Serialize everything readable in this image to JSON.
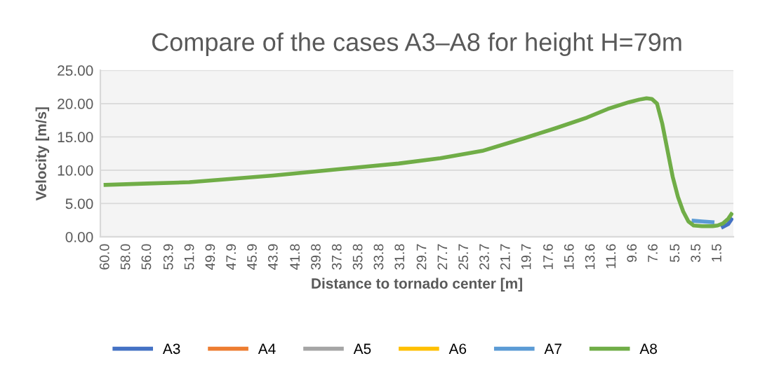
{
  "chart_data": {
    "type": "line",
    "title": "Compare of the cases A3–A8 for height H=79m",
    "xlabel": "Distance to tornado center [m]",
    "ylabel": "Velocity [m/s]",
    "x": [
      60,
      56,
      52,
      48,
      44,
      40,
      36,
      32,
      28,
      24,
      20,
      17,
      14,
      12,
      10,
      9,
      8.3,
      7.8,
      7.3,
      6.8,
      6.3,
      5.8,
      5.3,
      4.8,
      4.3,
      3.8,
      3,
      2,
      1.5,
      1,
      0.5,
      0.2
    ],
    "series": [
      {
        "name": "A3",
        "color": "#4472c4",
        "values": [
          null,
          null,
          null,
          null,
          null,
          null,
          null,
          null,
          null,
          null,
          null,
          null,
          null,
          null,
          null,
          null,
          null,
          null,
          null,
          null,
          null,
          null,
          null,
          null,
          null,
          null,
          null,
          null,
          null,
          1.5,
          1.9,
          2.6
        ]
      },
      {
        "name": "A4",
        "color": "#ed7d31",
        "values": [
          null,
          null,
          null,
          null,
          null,
          null,
          null,
          null,
          null,
          null,
          null,
          null,
          null,
          null,
          null,
          null,
          null,
          null,
          null,
          null,
          null,
          null,
          null,
          null,
          null,
          null,
          null,
          null,
          null,
          null,
          null,
          null
        ]
      },
      {
        "name": "A5",
        "color": "#a5a5a5",
        "values": [
          null,
          null,
          null,
          null,
          null,
          null,
          null,
          null,
          null,
          null,
          null,
          null,
          null,
          null,
          null,
          null,
          null,
          null,
          null,
          null,
          null,
          null,
          null,
          null,
          null,
          null,
          null,
          null,
          null,
          null,
          null,
          null
        ]
      },
      {
        "name": "A6",
        "color": "#ffc000",
        "values": [
          null,
          null,
          null,
          null,
          null,
          null,
          null,
          null,
          null,
          null,
          null,
          null,
          null,
          null,
          null,
          null,
          null,
          null,
          null,
          null,
          null,
          null,
          null,
          null,
          null,
          null,
          null,
          null,
          null,
          null,
          null,
          null
        ]
      },
      {
        "name": "A7",
        "color": "#5b9bd5",
        "values": [
          null,
          null,
          null,
          null,
          null,
          null,
          null,
          null,
          null,
          null,
          null,
          null,
          null,
          null,
          null,
          null,
          null,
          null,
          null,
          null,
          null,
          null,
          null,
          null,
          null,
          2.4,
          2.3,
          2.2,
          null,
          null,
          null,
          null
        ]
      },
      {
        "name": "A8",
        "color": "#70ad47",
        "values": [
          7.8,
          8.0,
          8.2,
          8.7,
          9.2,
          9.8,
          10.4,
          11.0,
          11.8,
          12.9,
          14.8,
          16.3,
          17.9,
          19.2,
          20.2,
          20.6,
          20.8,
          20.7,
          20.0,
          17.0,
          13.0,
          9.0,
          6.0,
          3.8,
          2.3,
          1.7,
          1.6,
          1.6,
          1.7,
          2.0,
          2.7,
          3.4
        ]
      }
    ],
    "xlim": [
      60.5,
      0
    ],
    "xticks": [
      {
        "value": 60,
        "label": "60.0"
      },
      {
        "value": 58,
        "label": "58.0"
      },
      {
        "value": 56,
        "label": "56.0"
      },
      53.9,
      51.9,
      49.9,
      47.9,
      45.9,
      43.9,
      41.8,
      39.8,
      37.8,
      35.8,
      33.8,
      31.8,
      29.7,
      27.7,
      25.7,
      23.7,
      21.7,
      19.7,
      17.6,
      15.6,
      13.6,
      11.6,
      9.6,
      7.6,
      5.5,
      3.5,
      1.5
    ],
    "ylim": [
      0,
      25
    ],
    "yticks": [
      {
        "value": 0,
        "label": "0.00"
      },
      {
        "value": 5,
        "label": "5.00"
      },
      {
        "value": 10,
        "label": "10.00"
      },
      {
        "value": 15,
        "label": "15.00"
      },
      {
        "value": 20,
        "label": "20.00"
      },
      {
        "value": 25,
        "label": "25.00"
      }
    ],
    "grid": "y",
    "legend": "bottom",
    "marker": "none",
    "line_style": "solid"
  }
}
